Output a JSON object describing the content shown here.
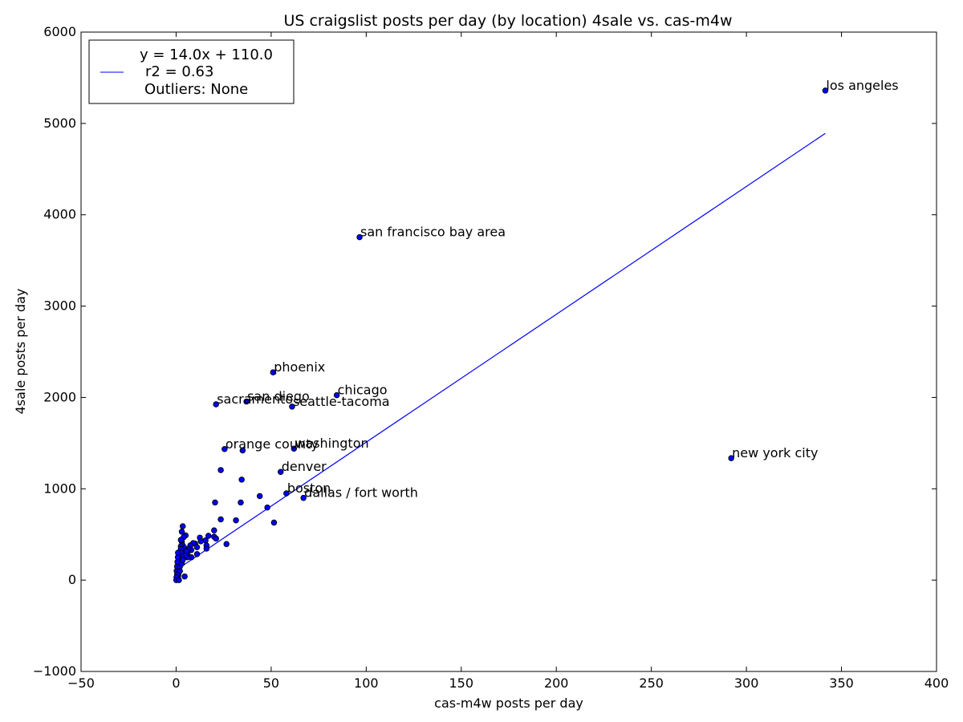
{
  "chart_data": {
    "type": "scatter",
    "title": "US craigslist posts per day (by location) 4sale vs. cas-m4w",
    "xlabel": "cas-m4w posts per day",
    "ylabel": "4sale posts per day",
    "xlim": [
      -50,
      400
    ],
    "ylim": [
      -1000,
      6000
    ],
    "xticks": [
      -50,
      0,
      50,
      100,
      150,
      200,
      250,
      300,
      350,
      400
    ],
    "yticks": [
      -1000,
      0,
      1000,
      2000,
      3000,
      4000,
      5000,
      6000
    ],
    "xtick_labels": [
      "−50",
      "0",
      "50",
      "100",
      "150",
      "200",
      "250",
      "300",
      "350",
      "400"
    ],
    "ytick_labels": [
      "−1000",
      "0",
      "1000",
      "2000",
      "3000",
      "4000",
      "5000",
      "6000"
    ],
    "grid": false,
    "legend": {
      "placement": "top-left",
      "lines": [
        "y = 14.0x + 110.0",
        "r2 = 0.63",
        "Outliers: None"
      ]
    },
    "fit_line": {
      "slope": 14.0,
      "intercept": 110.0,
      "x_range": [
        0,
        341.5
      ],
      "color": "#0000ff"
    },
    "point_color": "#0000ff",
    "labeled_points": [
      {
        "label": "los angeles",
        "x": 341.5,
        "y": 5360
      },
      {
        "label": "san francisco bay area",
        "x": 96.5,
        "y": 3755
      },
      {
        "label": "phoenix",
        "x": 51,
        "y": 2275
      },
      {
        "label": "chicago",
        "x": 84.5,
        "y": 2025
      },
      {
        "label": "san diego",
        "x": 37,
        "y": 1955
      },
      {
        "label": "seattle-tacoma",
        "x": 61,
        "y": 1900
      },
      {
        "label": "sacramento",
        "x": 21,
        "y": 1925
      },
      {
        "label": "orange county",
        "x": 25.5,
        "y": 1435
      },
      {
        "label": "washington",
        "x": 62,
        "y": 1440
      },
      {
        "label": "new york city",
        "x": 292,
        "y": 1335
      },
      {
        "label": "denver",
        "x": 55,
        "y": 1185
      },
      {
        "label": "boston",
        "x": 58,
        "y": 950
      },
      {
        "label": "dallas / fort worth",
        "x": 67,
        "y": 900
      }
    ],
    "points": [
      {
        "x": 35,
        "y": 1420
      },
      {
        "x": 23.5,
        "y": 1205
      },
      {
        "x": 34.5,
        "y": 1100
      },
      {
        "x": 44,
        "y": 920
      },
      {
        "x": 34,
        "y": 850
      },
      {
        "x": 20.5,
        "y": 850
      },
      {
        "x": 48,
        "y": 795
      },
      {
        "x": 23.5,
        "y": 665
      },
      {
        "x": 31.5,
        "y": 655
      },
      {
        "x": 51.5,
        "y": 630
      },
      {
        "x": 20,
        "y": 545
      },
      {
        "x": 17,
        "y": 485
      },
      {
        "x": 20,
        "y": 475
      },
      {
        "x": 21,
        "y": 455
      },
      {
        "x": 12.5,
        "y": 465
      },
      {
        "x": 15.5,
        "y": 435
      },
      {
        "x": 13,
        "y": 425
      },
      {
        "x": 26.5,
        "y": 395
      },
      {
        "x": 16,
        "y": 380
      },
      {
        "x": 16,
        "y": 345
      },
      {
        "x": 10,
        "y": 400
      },
      {
        "x": 9,
        "y": 405
      },
      {
        "x": 7.5,
        "y": 380
      },
      {
        "x": 11,
        "y": 360
      },
      {
        "x": 8,
        "y": 330
      },
      {
        "x": 11,
        "y": 285
      },
      {
        "x": 8,
        "y": 250
      },
      {
        "x": 6,
        "y": 300
      },
      {
        "x": 6,
        "y": 250
      },
      {
        "x": 5,
        "y": 490
      },
      {
        "x": 4,
        "y": 470
      },
      {
        "x": 3.5,
        "y": 590
      },
      {
        "x": 3,
        "y": 530
      },
      {
        "x": 3,
        "y": 420
      },
      {
        "x": 3.5,
        "y": 380
      },
      {
        "x": 4.5,
        "y": 350
      },
      {
        "x": 4.5,
        "y": 300
      },
      {
        "x": 4,
        "y": 250
      },
      {
        "x": 5,
        "y": 270
      },
      {
        "x": 2.5,
        "y": 440
      },
      {
        "x": 2.5,
        "y": 370
      },
      {
        "x": 2.5,
        "y": 340
      },
      {
        "x": 2.5,
        "y": 300
      },
      {
        "x": 3,
        "y": 260
      },
      {
        "x": 2,
        "y": 240
      },
      {
        "x": 2,
        "y": 200
      },
      {
        "x": 1.5,
        "y": 180
      },
      {
        "x": 1.5,
        "y": 150
      },
      {
        "x": 1.5,
        "y": 120
      },
      {
        "x": 1.5,
        "y": 90
      },
      {
        "x": 1.2,
        "y": 60
      },
      {
        "x": 1,
        "y": 40
      },
      {
        "x": 1,
        "y": 20
      },
      {
        "x": 0.8,
        "y": 10
      },
      {
        "x": 0.5,
        "y": 5
      },
      {
        "x": 0.3,
        "y": 100
      },
      {
        "x": 0.5,
        "y": 150
      },
      {
        "x": 0.7,
        "y": 200
      },
      {
        "x": 0.9,
        "y": 250
      },
      {
        "x": 1,
        "y": 300
      },
      {
        "x": 0.5,
        "y": 60
      },
      {
        "x": 0.2,
        "y": 30
      },
      {
        "x": 0.1,
        "y": 0
      },
      {
        "x": 1.5,
        "y": 0
      },
      {
        "x": 2,
        "y": 100
      },
      {
        "x": 2,
        "y": 150
      },
      {
        "x": 3,
        "y": 180
      },
      {
        "x": 3.5,
        "y": 220
      },
      {
        "x": 4.5,
        "y": 40
      },
      {
        "x": 6.5,
        "y": 340
      },
      {
        "x": 5.5,
        "y": 320
      }
    ]
  }
}
